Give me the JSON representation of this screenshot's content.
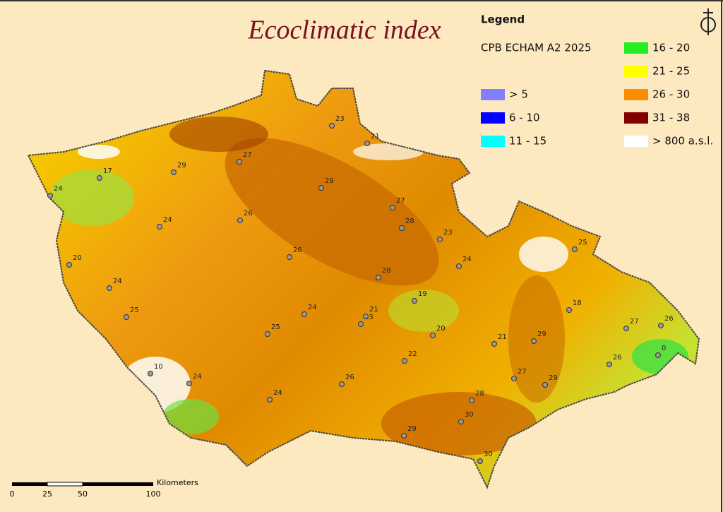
{
  "title": "Ecoclimatic index",
  "legend": {
    "title": "Legend",
    "scenario": "CPB ECHAM A2 2025",
    "items": [
      {
        "label": "> 5",
        "color": "#8080ff"
      },
      {
        "label": "6 - 10",
        "color": "#0000ff"
      },
      {
        "label": "11 - 15",
        "color": "#00ffff"
      },
      {
        "label": "16 - 20",
        "color": "#22ee22"
      },
      {
        "label": "21 - 25",
        "color": "#ffff00"
      },
      {
        "label": "26 - 30",
        "color": "#ff8c00"
      },
      {
        "label": "31 - 38",
        "color": "#800000"
      },
      {
        "label": "> 800 a.s.l.",
        "color": "#ffffff"
      }
    ]
  },
  "stations": [
    23,
    21,
    27,
    29,
    17,
    24,
    29,
    27,
    26,
    24,
    28,
    23,
    25,
    20,
    26,
    24,
    28,
    24,
    19,
    18,
    25,
    24,
    23,
    21,
    20,
    27,
    26,
    29,
    25,
    21,
    0,
    22,
    26,
    10,
    24,
    27,
    26,
    29,
    24,
    28,
    30,
    29,
    30
  ],
  "scale_bar": {
    "ticks": [
      0,
      25,
      50,
      100
    ],
    "unit": "Kilometers"
  }
}
